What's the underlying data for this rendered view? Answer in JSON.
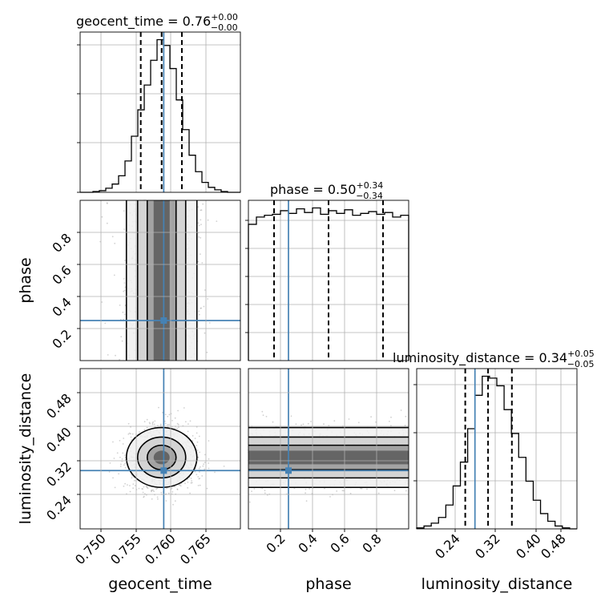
{
  "chart_data": {
    "type": "corner",
    "parameters": [
      "geocent_time",
      "phase",
      "luminosity_distance"
    ],
    "truths": {
      "geocent_time": 0.758,
      "phase": 0.25,
      "luminosity_distance": 0.31
    },
    "titles": {
      "geocent_time": {
        "prefix": "geocent_time = 0.76",
        "plus": "+0.00",
        "minus": "−0.00"
      },
      "phase": {
        "prefix": "phase = 0.50",
        "plus": "+0.34",
        "minus": "−0.34"
      },
      "luminosity_distance": {
        "prefix": "luminosity_distance = 0.34",
        "plus": "+0.05",
        "minus": "−0.05"
      }
    },
    "axis_labels": {
      "x": [
        "geocent_time",
        "phase",
        "luminosity_distance"
      ],
      "y": [
        "phase",
        "luminosity_distance"
      ]
    },
    "ranges": {
      "geocent_time": [
        0.746,
        0.769
      ],
      "phase": [
        0.0,
        1.0
      ],
      "luminosity_distance": [
        0.19,
        0.52
      ]
    },
    "ticks": {
      "geocent_time": [
        "0.750",
        "0.755",
        "0.760",
        "0.765"
      ],
      "phase": [
        "0.2",
        "0.4",
        "0.6",
        "0.8"
      ],
      "luminosity_distance": [
        "0.24",
        "0.32",
        "0.40",
        "0.48"
      ]
    },
    "quantiles": {
      "geocent_time": [
        0.7547,
        0.7577,
        0.7606
      ],
      "phase": [
        0.16,
        0.5,
        0.84
      ],
      "luminosity_distance": [
        0.29,
        0.337,
        0.386
      ]
    },
    "histograms": {
      "geocent_time": {
        "edges_range": [
          0.746,
          0.769
        ],
        "counts": [
          0,
          0,
          1,
          2,
          5,
          10,
          20,
          38,
          68,
          100,
          130,
          160,
          185,
          178,
          150,
          112,
          76,
          45,
          25,
          12,
          6,
          3,
          1,
          0,
          0
        ]
      },
      "phase": {
        "edges_range": [
          0.0,
          1.0
        ],
        "counts": [
          150,
          158,
          160,
          161,
          165,
          162,
          167,
          163,
          168,
          161,
          165,
          162,
          166,
          160,
          162,
          164,
          161,
          163,
          158,
          160
        ]
      },
      "luminosity_distance": {
        "edges_range": [
          0.19,
          0.52
        ],
        "counts": [
          1,
          3,
          6,
          12,
          25,
          45,
          70,
          105,
          140,
          160,
          158,
          150,
          125,
          100,
          75,
          50,
          30,
          16,
          8,
          3,
          1,
          0
        ]
      }
    },
    "grid": true
  }
}
